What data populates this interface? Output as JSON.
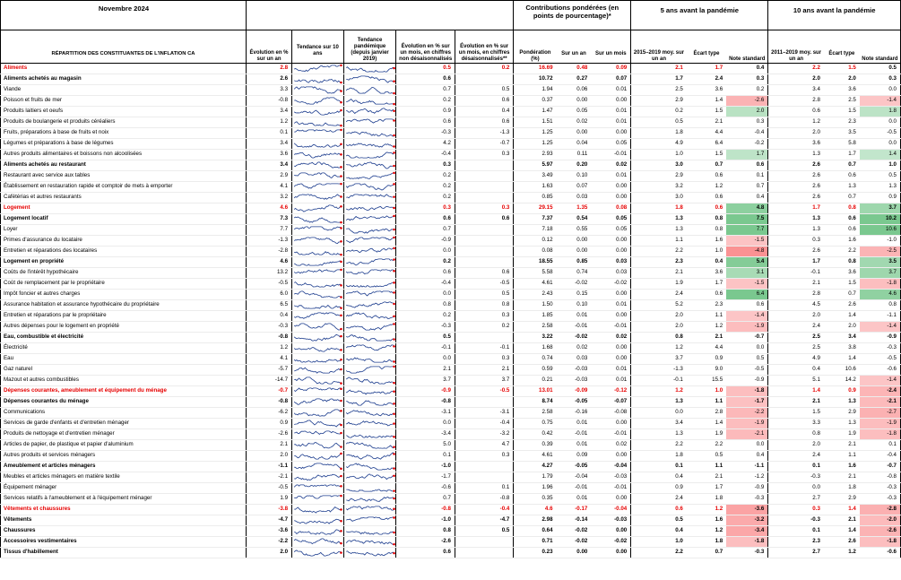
{
  "title": "Novembre 2024",
  "groups": {
    "contrib": "Contributions pondérées (en points de pourcentage)*",
    "pre5": "5 ans avant la pandémie",
    "pre10": "10 ans avant la pandémie"
  },
  "headers": {
    "label": "RÉPARTITION DES CONSTITUANTES DE L'INFLATION CA",
    "evol": "Évolution en % sur un an",
    "trend10": "Tendance sur 10 ans",
    "trendpand": "Tendance pandémique (depuis janvier 2019)",
    "mom_nsa": "Évolution en % sur un mois, en chiffres non désaisonnalisés",
    "mom_sa": "Évolution en % sur un mois, en chiffres désaisonnalisés**",
    "weight": "Pondération (%)",
    "c_yoy": "Sur un an",
    "c_mom": "Sur un mois",
    "p5_avg": "2015–2019 moy. sur un an",
    "p5_sd": "Écart type",
    "p5_note": "Note standard",
    "p10_avg": "2011–2019 moy. sur un an",
    "p10_sd": "Écart type",
    "p10_note": "Note standard"
  },
  "rows": [
    {
      "label": "Aliments",
      "kind": "red",
      "yoy": "2.8",
      "mnsa": "0.5",
      "msa": "0.2",
      "w": "16.69",
      "cy": "0.48",
      "cm": "0.09",
      "a5": "2.1",
      "s5": "1.7",
      "n5": "0.4",
      "a10": "2.2",
      "s10": "1.5",
      "n10": "0.5"
    },
    {
      "label": "Aliments achetés au magasin",
      "kind": "bold",
      "yoy": "2.6",
      "mnsa": "0.6",
      "msa": "",
      "w": "10.72",
      "cy": "0.27",
      "cm": "0.07",
      "a5": "1.7",
      "s5": "2.4",
      "n5": "0.3",
      "a10": "2.0",
      "s10": "2.0",
      "n10": "0.3"
    },
    {
      "label": "Viande",
      "kind": "",
      "yoy": "3.3",
      "mnsa": "0.7",
      "msa": "0.5",
      "w": "1.94",
      "cy": "0.06",
      "cm": "0.01",
      "a5": "2.5",
      "s5": "3.6",
      "n5": "0.2",
      "a10": "3.4",
      "s10": "3.6",
      "n10": "0.0"
    },
    {
      "label": "Poisson et fruits de mer",
      "kind": "",
      "yoy": "-0.8",
      "mnsa": "0.2",
      "msa": "0.6",
      "w": "0.37",
      "cy": "0.00",
      "cm": "0.00",
      "a5": "2.9",
      "s5": "1.4",
      "n5": "-2.6",
      "a10": "2.8",
      "s10": "2.5",
      "n10": "-1.4"
    },
    {
      "label": "Produits laitiers et oeufs",
      "kind": "",
      "yoy": "3.4",
      "mnsa": "0.9",
      "msa": "0.4",
      "w": "1.47",
      "cy": "0.05",
      "cm": "0.01",
      "a5": "0.2",
      "s5": "1.5",
      "n5": "2.0",
      "a10": "0.6",
      "s10": "1.5",
      "n10": "1.8"
    },
    {
      "label": "Produits de boulangerie et produits céréaliers",
      "kind": "",
      "yoy": "1.2",
      "mnsa": "0.6",
      "msa": "0.6",
      "w": "1.51",
      "cy": "0.02",
      "cm": "0.01",
      "a5": "0.5",
      "s5": "2.1",
      "n5": "0.3",
      "a10": "1.2",
      "s10": "2.3",
      "n10": "0.0"
    },
    {
      "label": "Fruits, préparations à base de fruits et noix",
      "kind": "",
      "yoy": "0.1",
      "mnsa": "-0.3",
      "msa": "-1.3",
      "w": "1.25",
      "cy": "0.00",
      "cm": "0.00",
      "a5": "1.8",
      "s5": "4.4",
      "n5": "-0.4",
      "a10": "2.0",
      "s10": "3.5",
      "n10": "-0.5"
    },
    {
      "label": "Légumes et préparations à base de légumes",
      "kind": "",
      "yoy": "3.4",
      "mnsa": "4.2",
      "msa": "-0.7",
      "w": "1.25",
      "cy": "0.04",
      "cm": "0.05",
      "a5": "4.9",
      "s5": "6.4",
      "n5": "-0.2",
      "a10": "3.6",
      "s10": "5.8",
      "n10": "0.0"
    },
    {
      "label": "Autres produits alimentaires et boissons non alcoolisées",
      "kind": "",
      "yoy": "3.6",
      "mnsa": "-0.4",
      "msa": "0.3",
      "w": "2.93",
      "cy": "0.11",
      "cm": "-0.01",
      "a5": "1.0",
      "s5": "1.5",
      "n5": "1.7",
      "a10": "1.3",
      "s10": "1.7",
      "n10": "1.4"
    },
    {
      "label": "Aliments achetés au restaurant",
      "kind": "bold",
      "yoy": "3.4",
      "mnsa": "0.3",
      "msa": "",
      "w": "5.97",
      "cy": "0.20",
      "cm": "0.02",
      "a5": "3.0",
      "s5": "0.7",
      "n5": "0.6",
      "a10": "2.6",
      "s10": "0.7",
      "n10": "1.0"
    },
    {
      "label": "Restaurant avec service aux tables",
      "kind": "",
      "yoy": "2.9",
      "mnsa": "0.2",
      "msa": "",
      "w": "3.49",
      "cy": "0.10",
      "cm": "0.01",
      "a5": "2.9",
      "s5": "0.6",
      "n5": "0.1",
      "a10": "2.6",
      "s10": "0.6",
      "n10": "0.5"
    },
    {
      "label": "Établissement en restauration rapide et comptoir de mets à emporter",
      "kind": "",
      "yoy": "4.1",
      "mnsa": "0.2",
      "msa": "",
      "w": "1.63",
      "cy": "0.07",
      "cm": "0.00",
      "a5": "3.2",
      "s5": "1.2",
      "n5": "0.7",
      "a10": "2.6",
      "s10": "1.3",
      "n10": "1.3"
    },
    {
      "label": "Cafétérias et autres restaurants",
      "kind": "",
      "yoy": "3.2",
      "mnsa": "0.2",
      "msa": "",
      "w": "0.85",
      "cy": "0.03",
      "cm": "0.00",
      "a5": "3.0",
      "s5": "0.6",
      "n5": "0.4",
      "a10": "2.6",
      "s10": "0.7",
      "n10": "0.9"
    },
    {
      "label": "Logement",
      "kind": "red",
      "yoy": "4.6",
      "mnsa": "0.3",
      "msa": "0.3",
      "w": "29.15",
      "cy": "1.35",
      "cm": "0.08",
      "a5": "1.8",
      "s5": "0.6",
      "n5": "4.8",
      "a10": "1.7",
      "s10": "0.8",
      "n10": "3.7"
    },
    {
      "label": "Logement locatif",
      "kind": "bold",
      "yoy": "7.3",
      "mnsa": "0.6",
      "msa": "0.6",
      "w": "7.37",
      "cy": "0.54",
      "cm": "0.05",
      "a5": "1.3",
      "s5": "0.8",
      "n5": "7.5",
      "a10": "1.3",
      "s10": "0.6",
      "n10": "10.2"
    },
    {
      "label": "Loyer",
      "kind": "",
      "yoy": "7.7",
      "mnsa": "0.7",
      "msa": "",
      "w": "7.18",
      "cy": "0.55",
      "cm": "0.05",
      "a5": "1.3",
      "s5": "0.8",
      "n5": "7.7",
      "a10": "1.3",
      "s10": "0.6",
      "n10": "10.6"
    },
    {
      "label": "Primes d'assurance du locataire",
      "kind": "",
      "yoy": "-1.3",
      "mnsa": "-0.9",
      "msa": "",
      "w": "0.12",
      "cy": "0.00",
      "cm": "0.00",
      "a5": "1.1",
      "s5": "1.6",
      "n5": "-1.5",
      "a10": "0.3",
      "s10": "1.6",
      "n10": "-1.0"
    },
    {
      "label": "Entretien et réparations des locataires",
      "kind": "",
      "yoy": "-2.8",
      "mnsa": "0.0",
      "msa": "",
      "w": "0.08",
      "cy": "0.00",
      "cm": "0.00",
      "a5": "2.2",
      "s5": "1.0",
      "n5": "-4.8",
      "a10": "2.6",
      "s10": "2.2",
      "n10": "-2.5"
    },
    {
      "label": "Logement en propriété",
      "kind": "bold",
      "yoy": "4.6",
      "mnsa": "0.2",
      "msa": "",
      "w": "18.55",
      "cy": "0.85",
      "cm": "0.03",
      "a5": "2.3",
      "s5": "0.4",
      "n5": "5.4",
      "a10": "1.7",
      "s10": "0.8",
      "n10": "3.5"
    },
    {
      "label": "Coûts de l'intérêt hypothécaire",
      "kind": "",
      "yoy": "13.2",
      "mnsa": "0.6",
      "msa": "0.6",
      "w": "5.58",
      "cy": "0.74",
      "cm": "0.03",
      "a5": "2.1",
      "s5": "3.6",
      "n5": "3.1",
      "a10": "-0.1",
      "s10": "3.6",
      "n10": "3.7"
    },
    {
      "label": "Coût de remplacement par le propriétaire",
      "kind": "",
      "yoy": "-0.5",
      "mnsa": "-0.4",
      "msa": "-0.5",
      "w": "4.61",
      "cy": "-0.02",
      "cm": "-0.02",
      "a5": "1.9",
      "s5": "1.7",
      "n5": "-1.5",
      "a10": "2.1",
      "s10": "1.5",
      "n10": "-1.8"
    },
    {
      "label": "Impôt foncier et autres charges",
      "kind": "",
      "yoy": "6.0",
      "mnsa": "0.0",
      "msa": "0.5",
      "w": "2.43",
      "cy": "0.15",
      "cm": "0.00",
      "a5": "2.4",
      "s5": "0.6",
      "n5": "6.4",
      "a10": "2.8",
      "s10": "0.7",
      "n10": "4.6"
    },
    {
      "label": "Assurance habitation et assurance hypothécaire du propriétaire",
      "kind": "",
      "yoy": "6.5",
      "mnsa": "0.8",
      "msa": "0.8",
      "w": "1.50",
      "cy": "0.10",
      "cm": "0.01",
      "a5": "5.2",
      "s5": "2.3",
      "n5": "0.6",
      "a10": "4.5",
      "s10": "2.6",
      "n10": "0.8"
    },
    {
      "label": "Entretien et réparations par le propriétaire",
      "kind": "",
      "yoy": "0.4",
      "mnsa": "0.2",
      "msa": "0.3",
      "w": "1.85",
      "cy": "0.01",
      "cm": "0.00",
      "a5": "2.0",
      "s5": "1.1",
      "n5": "-1.4",
      "a10": "2.0",
      "s10": "1.4",
      "n10": "-1.1"
    },
    {
      "label": "Autres dépenses pour le logement en propriété",
      "kind": "",
      "yoy": "-0.3",
      "mnsa": "-0.3",
      "msa": "0.2",
      "w": "2.58",
      "cy": "-0.01",
      "cm": "-0.01",
      "a5": "2.0",
      "s5": "1.2",
      "n5": "-1.9",
      "a10": "2.4",
      "s10": "2.0",
      "n10": "-1.4"
    },
    {
      "label": "Eau, combustible et électricité",
      "kind": "bold",
      "yoy": "-0.8",
      "mnsa": "0.5",
      "msa": "",
      "w": "3.22",
      "cy": "-0.02",
      "cm": "0.02",
      "a5": "0.8",
      "s5": "2.1",
      "n5": "-0.7",
      "a10": "2.5",
      "s10": "3.4",
      "n10": "-0.9"
    },
    {
      "label": "Électricité",
      "kind": "",
      "yoy": "1.2",
      "mnsa": "-0.1",
      "msa": "-0.1",
      "w": "1.68",
      "cy": "0.02",
      "cm": "0.00",
      "a5": "1.2",
      "s5": "4.4",
      "n5": "0.0",
      "a10": "2.5",
      "s10": "3.8",
      "n10": "-0.3"
    },
    {
      "label": "Eau",
      "kind": "",
      "yoy": "4.1",
      "mnsa": "0.0",
      "msa": "0.3",
      "w": "0.74",
      "cy": "0.03",
      "cm": "0.00",
      "a5": "3.7",
      "s5": "0.9",
      "n5": "0.5",
      "a10": "4.9",
      "s10": "1.4",
      "n10": "-0.5"
    },
    {
      "label": "Gaz naturel",
      "kind": "",
      "yoy": "-5.7",
      "mnsa": "2.1",
      "msa": "2.1",
      "w": "0.59",
      "cy": "-0.03",
      "cm": "0.01",
      "a5": "-1.3",
      "s5": "9.0",
      "n5": "-0.5",
      "a10": "0.4",
      "s10": "10.6",
      "n10": "-0.6"
    },
    {
      "label": "Mazout et autres combustibles",
      "kind": "",
      "yoy": "-14.7",
      "mnsa": "3.7",
      "msa": "3.7",
      "w": "0.21",
      "cy": "-0.03",
      "cm": "0.01",
      "a5": "-0.1",
      "s5": "15.5",
      "n5": "-0.9",
      "a10": "5.1",
      "s10": "14.2",
      "n10": "-1.4"
    },
    {
      "label": "Dépenses courantes, ameublement et équipement du ménage",
      "kind": "red",
      "yoy": "-0.7",
      "mnsa": "-0.9",
      "msa": "-0.5",
      "w": "13.01",
      "cy": "-0.09",
      "cm": "-0.12",
      "a5": "1.2",
      "s5": "1.0",
      "n5": "-1.8",
      "a10": "1.4",
      "s10": "0.9",
      "n10": "-2.4"
    },
    {
      "label": "Dépenses courantes du ménage",
      "kind": "bold",
      "yoy": "-0.8",
      "mnsa": "-0.8",
      "msa": "",
      "w": "8.74",
      "cy": "-0.05",
      "cm": "-0.07",
      "a5": "1.3",
      "s5": "1.1",
      "n5": "-1.7",
      "a10": "2.1",
      "s10": "1.3",
      "n10": "-2.1"
    },
    {
      "label": "Communications",
      "kind": "",
      "yoy": "-6.2",
      "mnsa": "-3.1",
      "msa": "-3.1",
      "w": "2.58",
      "cy": "-0.16",
      "cm": "-0.08",
      "a5": "0.0",
      "s5": "2.8",
      "n5": "-2.2",
      "a10": "1.5",
      "s10": "2.9",
      "n10": "-2.7"
    },
    {
      "label": "Services de garde d'enfants et d'entretien ménager",
      "kind": "",
      "yoy": "0.9",
      "mnsa": "0.0",
      "msa": "-0.4",
      "w": "0.75",
      "cy": "0.01",
      "cm": "0.00",
      "a5": "3.4",
      "s5": "1.4",
      "n5": "-1.9",
      "a10": "3.3",
      "s10": "1.3",
      "n10": "-1.9"
    },
    {
      "label": "Produits de nettoyage et d'entretien ménager",
      "kind": "",
      "yoy": "-2.6",
      "mnsa": "-3.4",
      "msa": "-3.2",
      "w": "0.42",
      "cy": "-0.01",
      "cm": "-0.01",
      "a5": "1.3",
      "s5": "1.9",
      "n5": "-2.1",
      "a10": "0.8",
      "s10": "1.9",
      "n10": "-1.8"
    },
    {
      "label": "Articles de papier, de plastique et papier d'aluminium",
      "kind": "",
      "yoy": "2.1",
      "mnsa": "5.0",
      "msa": "4.7",
      "w": "0.39",
      "cy": "0.01",
      "cm": "0.02",
      "a5": "2.2",
      "s5": "2.2",
      "n5": "0.0",
      "a10": "2.0",
      "s10": "2.1",
      "n10": "0.1"
    },
    {
      "label": "Autres produits et services ménagers",
      "kind": "",
      "yoy": "2.0",
      "mnsa": "0.1",
      "msa": "0.3",
      "w": "4.61",
      "cy": "0.09",
      "cm": "0.00",
      "a5": "1.8",
      "s5": "0.5",
      "n5": "0.4",
      "a10": "2.4",
      "s10": "1.1",
      "n10": "-0.4"
    },
    {
      "label": "Ameublement et articles ménagers",
      "kind": "bold",
      "yoy": "-1.1",
      "mnsa": "-1.0",
      "msa": "",
      "w": "4.27",
      "cy": "-0.05",
      "cm": "-0.04",
      "a5": "0.1",
      "s5": "1.1",
      "n5": "-1.1",
      "a10": "0.1",
      "s10": "1.6",
      "n10": "-0.7"
    },
    {
      "label": "Meubles et articles ménagers en matière textile",
      "kind": "",
      "yoy": "-2.1",
      "mnsa": "-1.7",
      "msa": "",
      "w": "1.79",
      "cy": "-0.04",
      "cm": "-0.03",
      "a5": "0.4",
      "s5": "2.1",
      "n5": "-1.2",
      "a10": "-0.3",
      "s10": "2.1",
      "n10": "-0.8"
    },
    {
      "label": "Équipement ménager",
      "kind": "",
      "yoy": "-0.5",
      "mnsa": "-0.6",
      "msa": "0.1",
      "w": "1.96",
      "cy": "-0.01",
      "cm": "-0.01",
      "a5": "0.9",
      "s5": "1.7",
      "n5": "-0.9",
      "a10": "0.0",
      "s10": "1.8",
      "n10": "-0.3"
    },
    {
      "label": "Services relatifs à l'ameublement et à l'équipement ménager",
      "kind": "",
      "yoy": "1.9",
      "mnsa": "0.7",
      "msa": "-0.8",
      "w": "0.35",
      "cy": "0.01",
      "cm": "0.00",
      "a5": "2.4",
      "s5": "1.8",
      "n5": "-0.3",
      "a10": "2.7",
      "s10": "2.9",
      "n10": "-0.3"
    },
    {
      "label": "Vêtements et chaussures",
      "kind": "red",
      "yoy": "-3.8",
      "mnsa": "-0.8",
      "msa": "-0.4",
      "w": "4.6",
      "cy": "-0.17",
      "cm": "-0.04",
      "a5": "0.6",
      "s5": "1.2",
      "n5": "-3.6",
      "a10": "0.3",
      "s10": "1.4",
      "n10": "-2.8"
    },
    {
      "label": "Vêtements",
      "kind": "bold",
      "yoy": "-4.7",
      "mnsa": "-1.0",
      "msa": "-4.7",
      "w": "2.98",
      "cy": "-0.14",
      "cm": "-0.03",
      "a5": "0.5",
      "s5": "1.6",
      "n5": "-3.2",
      "a10": "-0.3",
      "s10": "2.1",
      "n10": "-2.0"
    },
    {
      "label": "Chaussures",
      "kind": "bold",
      "yoy": "-3.6",
      "mnsa": "0.8",
      "msa": "0.5",
      "w": "0.64",
      "cy": "-0.02",
      "cm": "0.00",
      "a5": "0.4",
      "s5": "1.2",
      "n5": "-3.4",
      "a10": "0.1",
      "s10": "1.4",
      "n10": "-2.6"
    },
    {
      "label": "Accessoires vestimentaires",
      "kind": "bold",
      "yoy": "-2.2",
      "mnsa": "-2.6",
      "msa": "",
      "w": "0.71",
      "cy": "-0.02",
      "cm": "-0.02",
      "a5": "1.0",
      "s5": "1.8",
      "n5": "-1.8",
      "a10": "2.3",
      "s10": "2.6",
      "n10": "-1.8"
    },
    {
      "label": "Tissus d'habillement",
      "kind": "bold",
      "yoy": "2.0",
      "mnsa": "0.6",
      "msa": "",
      "w": "0.23",
      "cy": "0.00",
      "cm": "0.00",
      "a5": "2.2",
      "s5": "0.7",
      "n5": "-0.3",
      "a10": "2.7",
      "s10": "1.2",
      "n10": "-0.6"
    }
  ],
  "colors": {
    "red": "#e60000",
    "pos": "#63be7b",
    "neg": "#f8696b",
    "spark": "#1f3f8f",
    "spark_dot": "#e60000"
  }
}
